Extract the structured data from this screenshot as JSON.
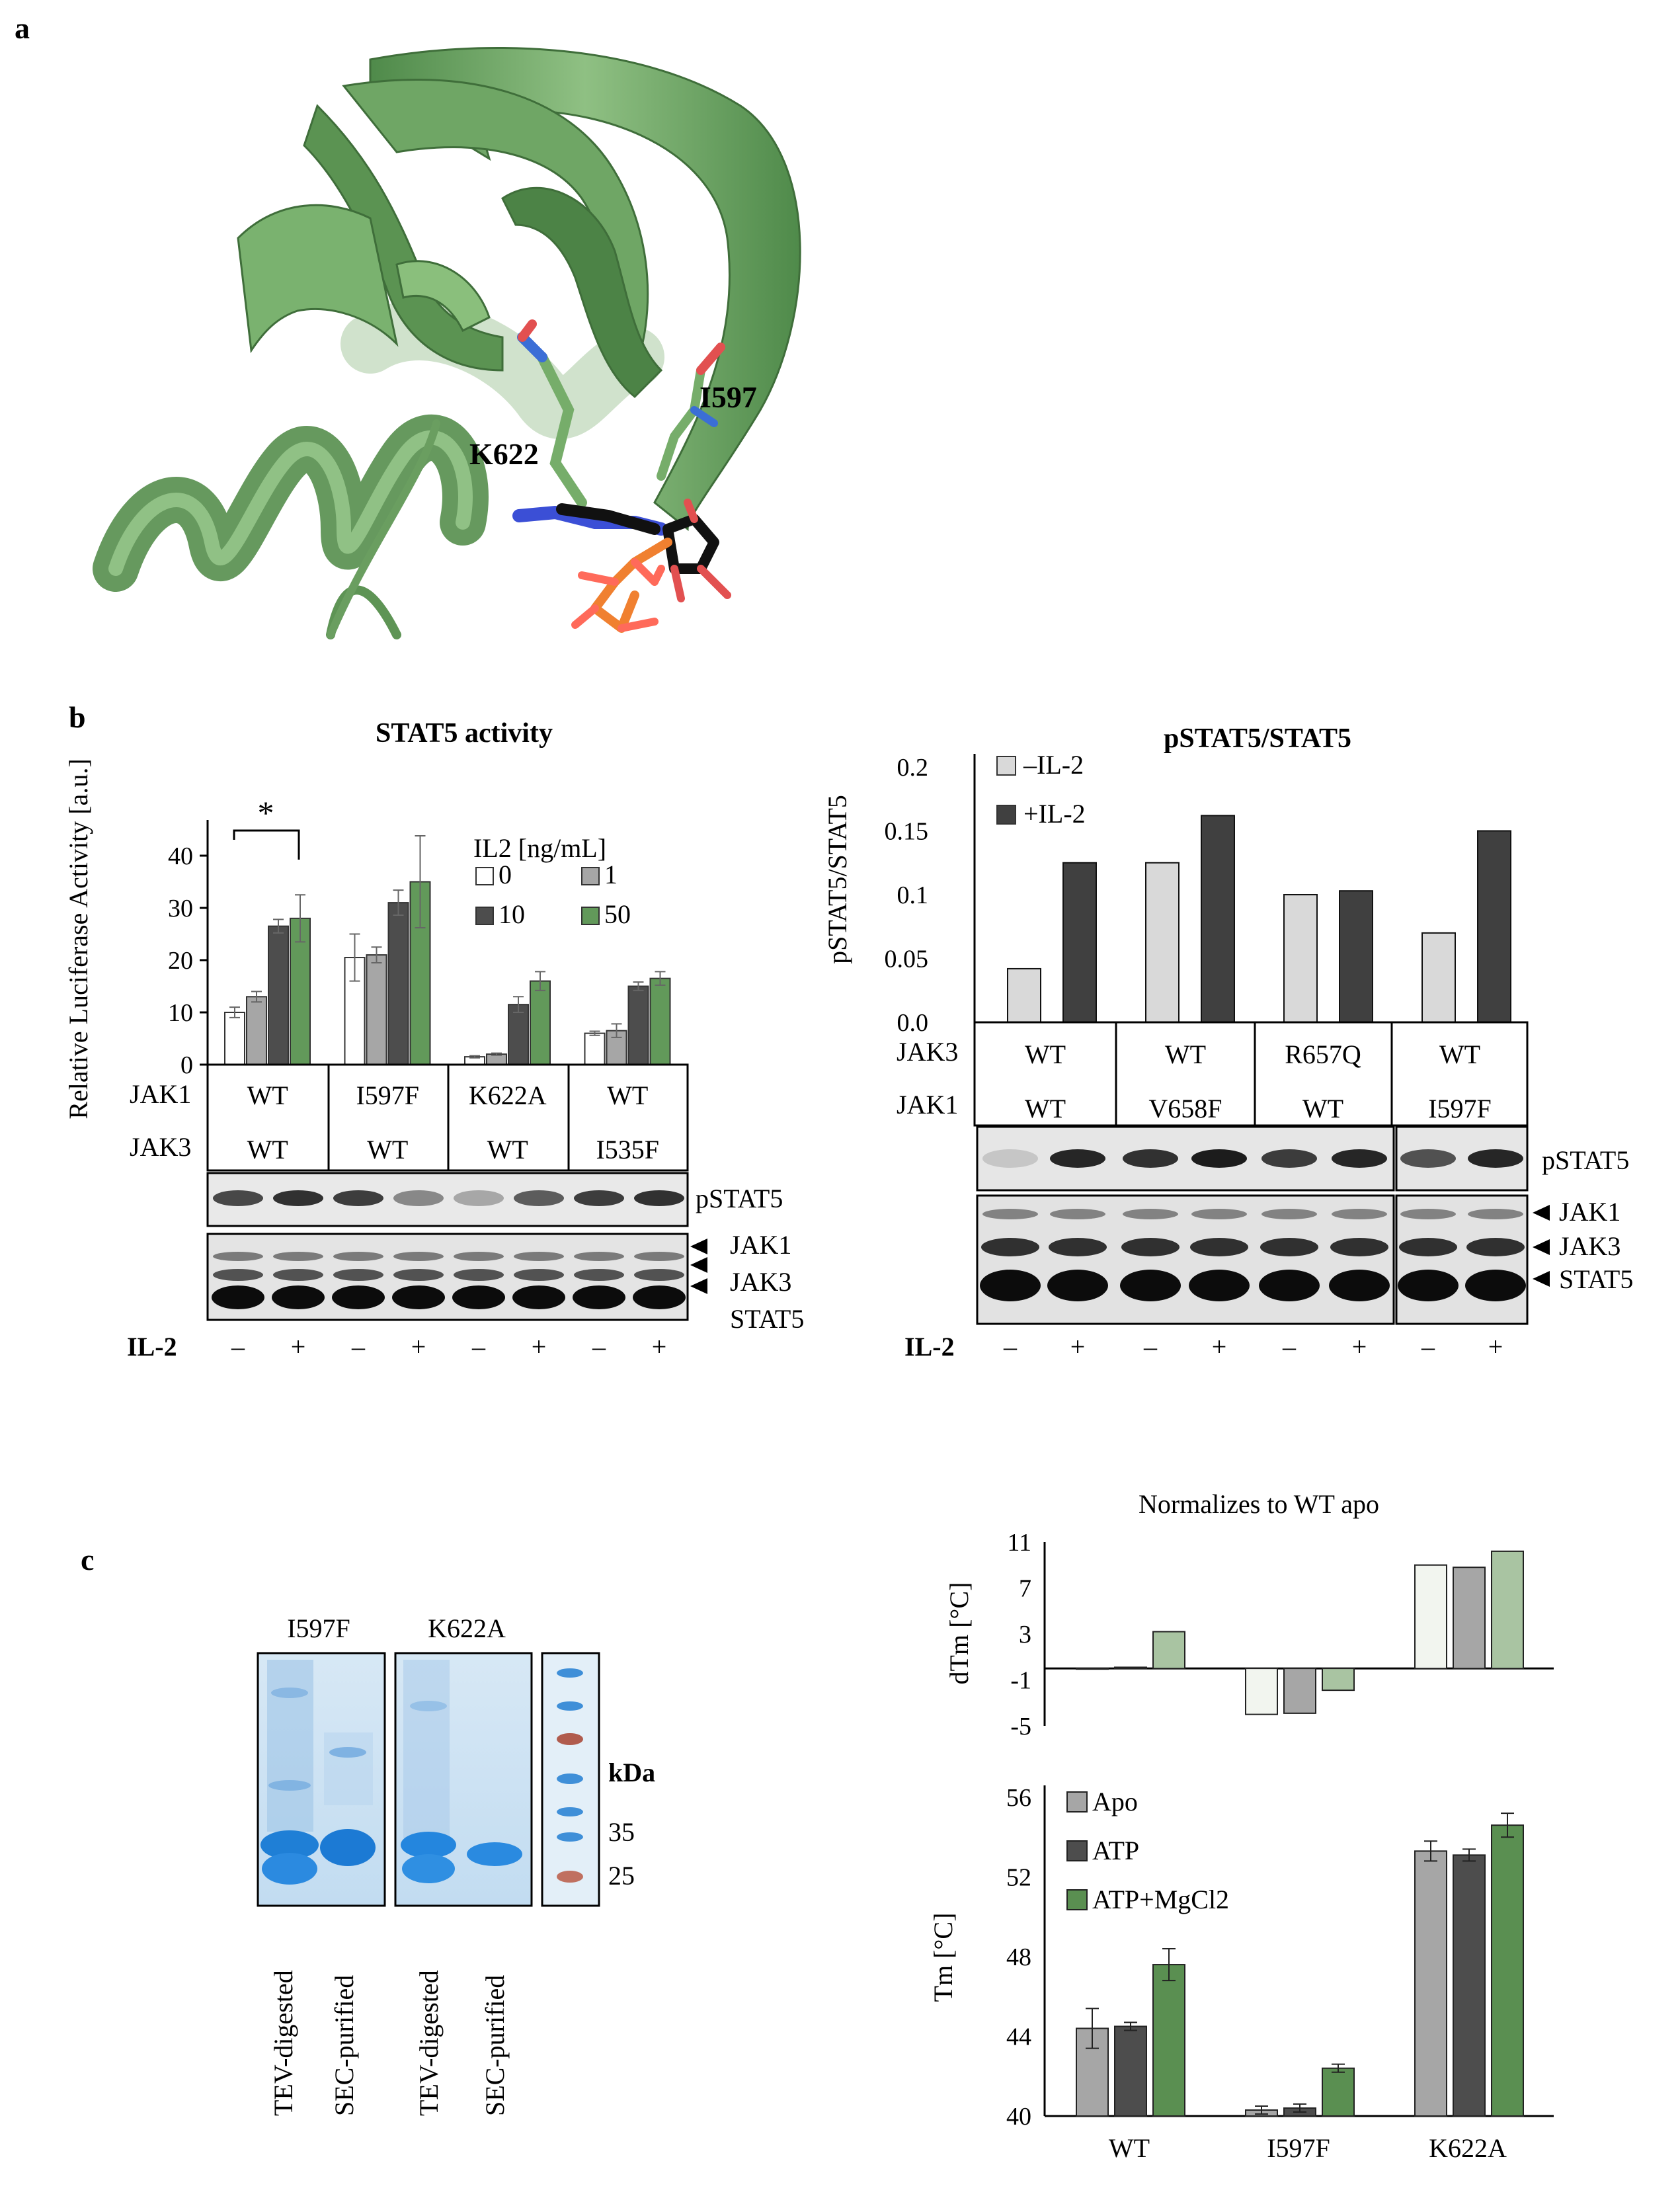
{
  "panels": {
    "a": "a",
    "b": "b",
    "c": "c"
  },
  "structure": {
    "label_I597": "I597",
    "label_K622": "K622"
  },
  "luciferase": {
    "title": "STAT5 activity",
    "ylabel": "Relative Luciferase Activity [a.u.]",
    "legend_title": "IL2 [ng/mL]",
    "significance": "*",
    "row1_label": "JAK1",
    "row2_label": "JAK3",
    "row1": [
      "WT",
      "I597F",
      "K622A",
      "WT"
    ],
    "row2": [
      "WT",
      "WT",
      "WT",
      "I535F"
    ],
    "blot_labels": [
      "pSTAT5",
      "JAK1",
      "JAK3",
      "STAT5"
    ],
    "il2_label": "IL-2",
    "lane_signs": [
      "–",
      "+",
      "–",
      "+",
      "–",
      "+",
      "–",
      "+"
    ]
  },
  "ratio": {
    "title": "pSTAT5/STAT5",
    "ylabel": "pSTAT5/STAT5",
    "row1_label": "JAK3",
    "row2_label": "JAK1",
    "row1": [
      "WT",
      "WT",
      "R657Q",
      "WT"
    ],
    "row2": [
      "WT",
      "V658F",
      "WT",
      "I597F"
    ],
    "blot_labels": [
      "pSTAT5",
      "JAK1",
      "JAK3",
      "STAT5"
    ],
    "il2_label": "IL-2",
    "lane_signs": [
      "–",
      "+",
      "–",
      "+",
      "–",
      "+",
      "–",
      "+"
    ]
  },
  "gel": {
    "lane_group_1": "I597F",
    "lane_group_2": "K622A",
    "kda_label": "kDa",
    "marker_35": "35",
    "marker_25": "25",
    "lanes": [
      "TEV-digested",
      "SEC-purified",
      "TEV-digested",
      "SEC-purified"
    ]
  },
  "dtm": {
    "title": "Normalizes to WT apo",
    "ylabel": "dTm [°C]"
  },
  "tm": {
    "ylabel": "Tm [°C]"
  },
  "chart_data": [
    {
      "type": "bar",
      "title": "STAT5 activity",
      "ylabel": "Relative Luciferase Activity [a.u.]",
      "ylim": [
        0,
        40
      ],
      "yticks": [
        0,
        10,
        20,
        30,
        40
      ],
      "categories": [
        "WT/WT",
        "I597F/WT",
        "K622A/WT",
        "WT/I535F"
      ],
      "legend_title": "IL2 [ng/mL]",
      "legend": "top-right",
      "series": [
        {
          "name": "0",
          "color": "#ffffff",
          "values": [
            10,
            20.5,
            1.5,
            6
          ],
          "errors": [
            1,
            4.5,
            0.2,
            0.4
          ]
        },
        {
          "name": "1",
          "color": "#a6a6a6",
          "values": [
            13,
            21,
            2,
            6.5
          ],
          "errors": [
            1,
            1.5,
            0.2,
            1.3
          ]
        },
        {
          "name": "10",
          "color": "#4d4d4d",
          "values": [
            26.5,
            31,
            11.5,
            15
          ],
          "errors": [
            1.3,
            2.4,
            1.5,
            0.8
          ]
        },
        {
          "name": "50",
          "color": "#62995a",
          "values": [
            28,
            35,
            16,
            16.5
          ],
          "errors": [
            4.5,
            8.8,
            1.8,
            1.3
          ]
        }
      ]
    },
    {
      "type": "bar",
      "title": "pSTAT5/STAT5",
      "ylabel": "pSTAT5/STAT5",
      "ylim": [
        0,
        0.2
      ],
      "yticks": [
        "0.0",
        "0.05",
        "0.1",
        "0.15",
        "0.2"
      ],
      "categories": [
        "WT/WT",
        "WT/V658F",
        "R657Q/WT",
        "WT/I597F"
      ],
      "legend": "top-left",
      "series": [
        {
          "name": "–IL-2",
          "color": "#d9d9d9",
          "values": [
            0.042,
            0.125,
            0.1,
            0.07
          ]
        },
        {
          "name": "+IL-2",
          "color": "#404040",
          "values": [
            0.125,
            0.162,
            0.103,
            0.15
          ]
        }
      ]
    },
    {
      "type": "bar",
      "title": "Normalizes to WT apo",
      "ylabel": "dTm [°C]",
      "ylim": [
        -5,
        11
      ],
      "yticks": [
        "-5",
        "-1",
        "3",
        "7",
        "11"
      ],
      "categories": [
        "WT",
        "I597F",
        "K622A"
      ],
      "series": [
        {
          "name": "Apo",
          "color": "#f2f5ef",
          "values": [
            0,
            -4,
            9
          ]
        },
        {
          "name": "ATP",
          "color": "#a6a6a6",
          "values": [
            0.1,
            -3.9,
            8.8
          ]
        },
        {
          "name": "ATP+MgCl2",
          "color": "#a9c4a2",
          "values": [
            3.2,
            -1.9,
            10.2
          ]
        }
      ]
    },
    {
      "type": "bar",
      "ylabel": "Tm [°C]",
      "ylim": [
        40,
        56
      ],
      "yticks": [
        "40",
        "44",
        "48",
        "52",
        "56"
      ],
      "categories": [
        "WT",
        "I597F",
        "K622A"
      ],
      "legend": "top-left",
      "series": [
        {
          "name": "Apo",
          "color": "#a6a6a6",
          "values": [
            44.4,
            40.3,
            53.3
          ],
          "errors": [
            1,
            0.2,
            0.5
          ]
        },
        {
          "name": "ATP",
          "color": "#4d4d4d",
          "values": [
            44.5,
            40.4,
            53.1
          ],
          "errors": [
            0.2,
            0.2,
            0.3
          ]
        },
        {
          "name": "ATP+MgCl2",
          "color": "#5a8f51",
          "values": [
            47.6,
            42.4,
            54.6
          ],
          "errors": [
            0.8,
            0.2,
            0.6
          ]
        }
      ]
    }
  ]
}
